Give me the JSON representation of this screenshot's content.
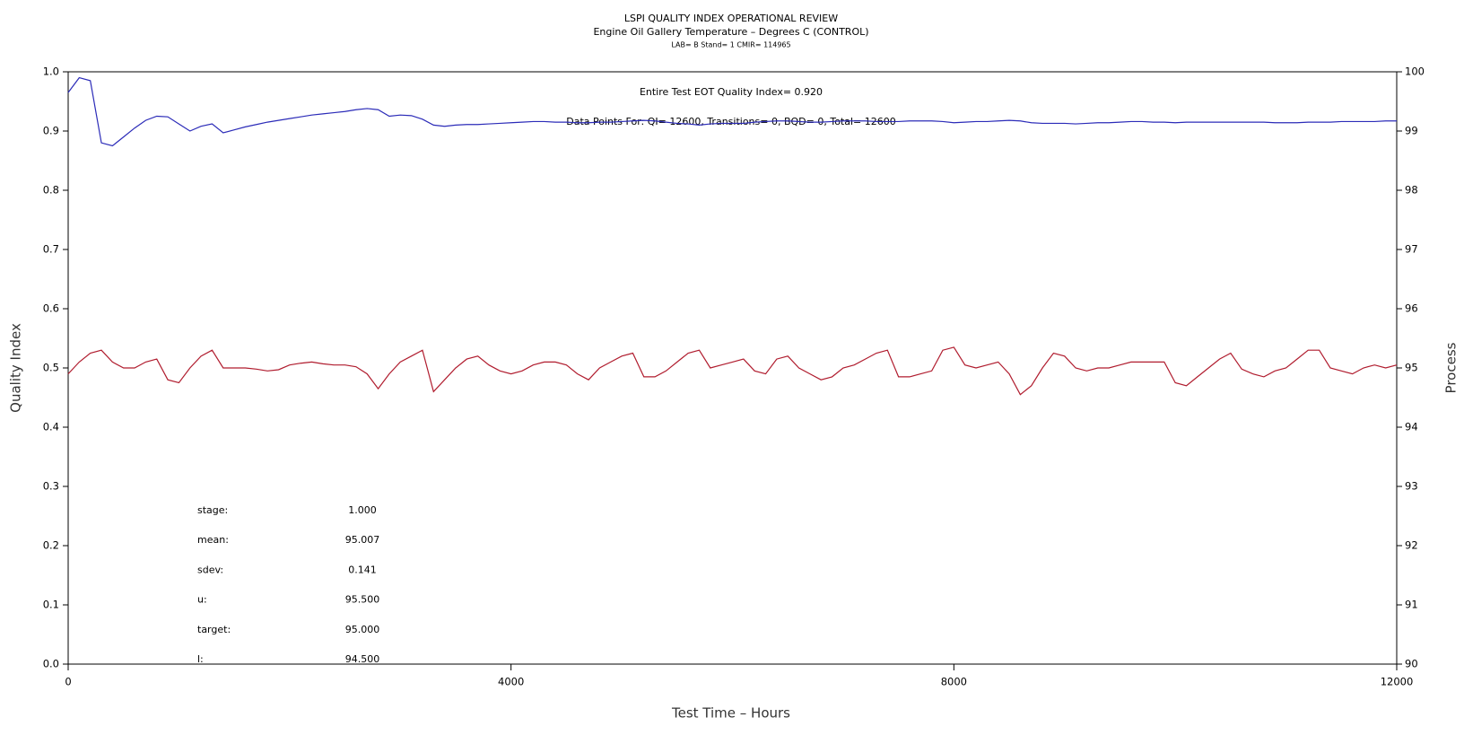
{
  "chart_data": {
    "type": "line",
    "title": "LSPI QUALITY INDEX OPERATIONAL REVIEW",
    "subtitle": "Engine Oil Gallery Temperature – Degrees C (CONTROL)",
    "subtitle2": "LAB= B Stand= 1 CMIR= 114965",
    "annotations": [
      "Entire Test EOT Quality Index=   0.920",
      "Data Points For: QI= 12600, Transitions=     0, BQD=     0, Total= 12600"
    ],
    "stats": [
      [
        "stage:",
        "1.000"
      ],
      [
        "mean:",
        "95.007"
      ],
      [
        "sdev:",
        "0.141"
      ],
      [
        "u:",
        "95.500"
      ],
      [
        "target:",
        "95.000"
      ],
      [
        "l:",
        "94.500"
      ]
    ],
    "x_label": "Test Time – Hours",
    "y_label": "Quality Index",
    "y2_label": "Process",
    "xlim": [
      0,
      12000
    ],
    "xticks": [
      0,
      4000,
      8000,
      12000
    ],
    "ylim": [
      0,
      1
    ],
    "yticks": [
      {
        "value": 0,
        "label": "0.0"
      },
      0.1,
      0.2,
      0.3,
      0.4,
      0.5,
      0.6,
      0.7,
      0.8,
      0.9,
      {
        "value": 1,
        "label": "1.0"
      }
    ],
    "y2lim": [
      90,
      100
    ],
    "y2ticks": [
      90,
      91,
      92,
      93,
      94,
      95,
      96,
      97,
      98,
      99,
      100
    ],
    "x": [
      0,
      100,
      200,
      300,
      400,
      500,
      600,
      700,
      800,
      900,
      1000,
      1100,
      1200,
      1300,
      1400,
      1500,
      1600,
      1700,
      1800,
      1900,
      2000,
      2100,
      2200,
      2300,
      2400,
      2500,
      2600,
      2700,
      2800,
      2900,
      3000,
      3100,
      3200,
      3300,
      3400,
      3500,
      3600,
      3700,
      3800,
      3900,
      4000,
      4100,
      4200,
      4300,
      4400,
      4500,
      4600,
      4700,
      4800,
      4900,
      5000,
      5100,
      5200,
      5300,
      5400,
      5500,
      5600,
      5700,
      5800,
      5900,
      6000,
      6100,
      6200,
      6300,
      6400,
      6500,
      6600,
      6700,
      6800,
      6900,
      7000,
      7100,
      7200,
      7300,
      7400,
      7500,
      7600,
      7700,
      7800,
      7900,
      8000,
      8100,
      8200,
      8300,
      8400,
      8500,
      8600,
      8700,
      8800,
      8900,
      9000,
      9100,
      9200,
      9300,
      9400,
      9500,
      9600,
      9700,
      9800,
      9900,
      10000,
      10100,
      10200,
      10300,
      10400,
      10500,
      10600,
      10700,
      10800,
      10900,
      11000,
      11100,
      11200,
      11300,
      11400,
      11500,
      11600,
      11700,
      11800,
      11900,
      12000
    ],
    "series": [
      {
        "color": "#2b2bb8",
        "values": [
          0.965,
          0.99,
          0.985,
          0.88,
          0.875,
          0.89,
          0.905,
          0.918,
          0.925,
          0.924,
          0.912,
          0.9,
          0.908,
          0.912,
          0.897,
          0.902,
          0.907,
          0.911,
          0.915,
          0.918,
          0.921,
          0.924,
          0.927,
          0.929,
          0.931,
          0.933,
          0.936,
          0.938,
          0.936,
          0.925,
          0.927,
          0.926,
          0.92,
          0.91,
          0.908,
          0.91,
          0.911,
          0.911,
          0.912,
          0.913,
          0.914,
          0.915,
          0.916,
          0.916,
          0.915,
          0.915,
          0.914,
          0.914,
          0.915,
          0.915,
          0.916,
          0.917,
          0.918,
          0.917,
          0.915,
          0.913,
          0.912,
          0.91,
          0.912,
          0.913,
          0.913,
          0.913,
          0.915,
          0.916,
          0.917,
          0.917,
          0.916,
          0.915,
          0.915,
          0.916,
          0.917,
          0.917,
          0.917,
          0.916,
          0.916,
          0.916,
          0.917,
          0.917,
          0.917,
          0.916,
          0.914,
          0.915,
          0.916,
          0.916,
          0.917,
          0.918,
          0.917,
          0.914,
          0.913,
          0.913,
          0.913,
          0.912,
          0.913,
          0.914,
          0.914,
          0.915,
          0.916,
          0.916,
          0.915,
          0.915,
          0.914,
          0.915,
          0.915,
          0.915,
          0.915,
          0.915,
          0.915,
          0.915,
          0.915,
          0.914,
          0.914,
          0.914,
          0.915,
          0.915,
          0.915,
          0.916,
          0.916,
          0.916,
          0.916,
          0.917,
          0.917
        ]
      },
      {
        "color": "#b01c2e",
        "axis": "y2",
        "values": [
          94.9,
          95.1,
          95.25,
          95.3,
          95.1,
          95.0,
          95.0,
          95.1,
          95.15,
          94.8,
          94.75,
          95.0,
          95.2,
          95.3,
          95.0,
          95.0,
          95.0,
          94.98,
          94.95,
          94.97,
          95.05,
          95.08,
          95.1,
          95.07,
          95.05,
          95.05,
          95.02,
          94.9,
          94.65,
          94.9,
          95.1,
          95.2,
          95.3,
          94.6,
          94.8,
          95.0,
          95.15,
          95.2,
          95.05,
          94.95,
          94.9,
          94.95,
          95.05,
          95.1,
          95.1,
          95.05,
          94.9,
          94.8,
          95.0,
          95.1,
          95.2,
          95.25,
          94.85,
          94.85,
          94.95,
          95.1,
          95.25,
          95.3,
          95.0,
          95.05,
          95.1,
          95.15,
          94.95,
          94.9,
          95.15,
          95.2,
          95.0,
          94.9,
          94.8,
          94.85,
          95.0,
          95.05,
          95.15,
          95.25,
          95.3,
          94.85,
          94.85,
          94.9,
          94.95,
          95.3,
          95.35,
          95.05,
          95.0,
          95.05,
          95.1,
          94.9,
          94.55,
          94.7,
          95.0,
          95.25,
          95.2,
          95.0,
          94.95,
          95.0,
          95.0,
          95.05,
          95.1,
          95.1,
          95.1,
          95.1,
          94.75,
          94.7,
          94.85,
          95.0,
          95.15,
          95.25,
          94.98,
          94.9,
          94.85,
          94.95,
          95.0,
          95.15,
          95.3,
          95.3,
          95.0,
          94.95,
          94.9,
          95.0,
          95.05,
          95.0,
          95.05
        ]
      }
    ]
  }
}
